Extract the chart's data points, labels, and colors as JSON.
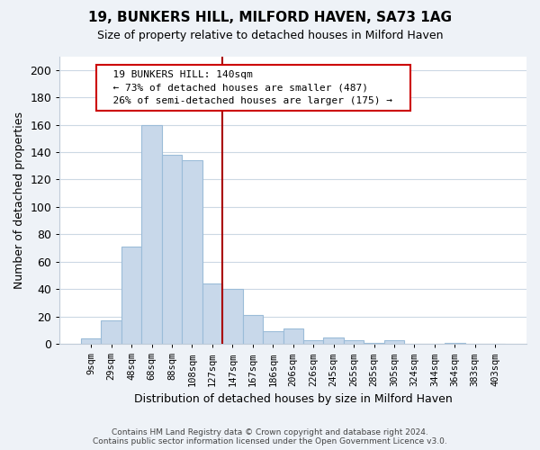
{
  "title": "19, BUNKERS HILL, MILFORD HAVEN, SA73 1AG",
  "subtitle": "Size of property relative to detached houses in Milford Haven",
  "xlabel": "Distribution of detached houses by size in Milford Haven",
  "ylabel": "Number of detached properties",
  "bar_labels": [
    "9sqm",
    "29sqm",
    "48sqm",
    "68sqm",
    "88sqm",
    "108sqm",
    "127sqm",
    "147sqm",
    "167sqm",
    "186sqm",
    "206sqm",
    "226sqm",
    "245sqm",
    "265sqm",
    "285sqm",
    "305sqm",
    "324sqm",
    "344sqm",
    "364sqm",
    "383sqm",
    "403sqm"
  ],
  "bar_heights": [
    4,
    17,
    71,
    160,
    138,
    134,
    44,
    40,
    21,
    9,
    11,
    3,
    5,
    3,
    1,
    3,
    0,
    0,
    1,
    0,
    0
  ],
  "bar_color": "#c8d8ea",
  "bar_edge_color": "#9bbcd8",
  "ylim": [
    0,
    210
  ],
  "yticks": [
    0,
    20,
    40,
    60,
    80,
    100,
    120,
    140,
    160,
    180,
    200
  ],
  "vline_color": "#aa0000",
  "annotation_box_color": "#ffffff",
  "annotation_border_color": "#cc0000",
  "annotation_title": "19 BUNKERS HILL: 140sqm",
  "annotation_line1": "← 73% of detached houses are smaller (487)",
  "annotation_line2": "26% of semi-detached houses are larger (175) →",
  "footer_line1": "Contains HM Land Registry data © Crown copyright and database right 2024.",
  "footer_line2": "Contains public sector information licensed under the Open Government Licence v3.0.",
  "bg_color": "#eef2f7",
  "plot_bg_color": "#ffffff",
  "grid_color": "#ccd8e4"
}
